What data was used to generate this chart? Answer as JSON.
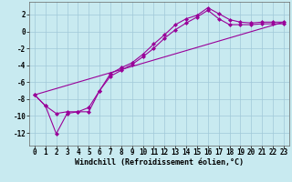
{
  "background_color": "#c8eaf0",
  "grid_color": "#a0c8d8",
  "line_color": "#990099",
  "marker": "D",
  "marker_size": 2.0,
  "line_width": 0.8,
  "xlabel": "Windchill (Refroidissement éolien,°C)",
  "xlabel_fontsize": 6.0,
  "tick_fontsize": 5.5,
  "xlim": [
    -0.5,
    23.5
  ],
  "ylim": [
    -13.5,
    3.5
  ],
  "yticks": [
    2,
    0,
    -2,
    -4,
    -6,
    -8,
    -10,
    -12
  ],
  "xticks": [
    0,
    1,
    2,
    3,
    4,
    5,
    6,
    7,
    8,
    9,
    10,
    11,
    12,
    13,
    14,
    15,
    16,
    17,
    18,
    19,
    20,
    21,
    22,
    23
  ],
  "series1_x": [
    0,
    1,
    2,
    3,
    4,
    5,
    6,
    7,
    8,
    9,
    10,
    11,
    12,
    13,
    14,
    15,
    16,
    17,
    18,
    19,
    20,
    21,
    22,
    23
  ],
  "series1_y": [
    -7.5,
    -8.8,
    -12.1,
    -9.7,
    -9.5,
    -9.5,
    -7.0,
    -5.0,
    -4.3,
    -3.7,
    -2.7,
    -1.5,
    -0.4,
    0.8,
    1.5,
    1.9,
    2.8,
    2.1,
    1.4,
    1.1,
    1.0,
    1.1,
    1.1,
    1.1
  ],
  "series2_x": [
    0,
    1,
    2,
    3,
    4,
    5,
    6,
    7,
    8,
    9,
    10,
    11,
    12,
    13,
    14,
    15,
    16,
    17,
    18,
    19,
    20,
    21,
    22,
    23
  ],
  "series2_y": [
    -7.5,
    -8.8,
    -9.7,
    -9.5,
    -9.5,
    -9.0,
    -7.0,
    -5.3,
    -4.6,
    -3.9,
    -3.0,
    -2.0,
    -0.8,
    0.2,
    1.0,
    1.7,
    2.5,
    1.5,
    0.8,
    0.8,
    0.8,
    0.9,
    0.9,
    0.9
  ],
  "series3_x": [
    0,
    23
  ],
  "series3_y": [
    -7.5,
    1.1
  ]
}
